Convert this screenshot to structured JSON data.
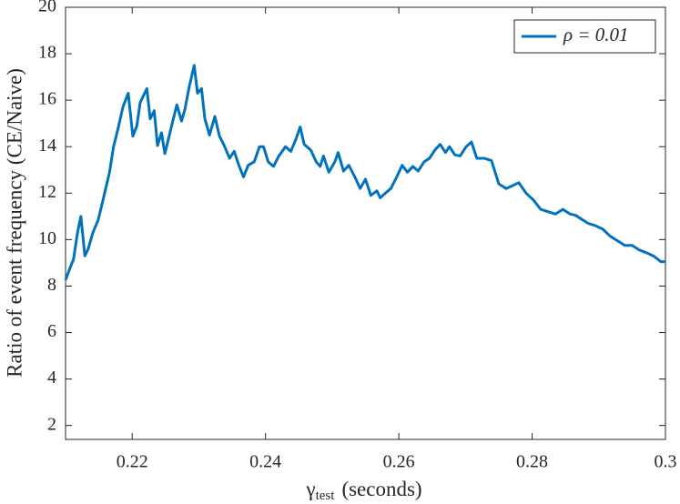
{
  "chart_data": {
    "type": "line",
    "ylabel": "Ratio of event frequency (CE/Naive)",
    "xlabel": {
      "symbol": "γ",
      "subscript": "test",
      "unit": "(seconds)"
    },
    "xlim": [
      0.21,
      0.3
    ],
    "ylim": [
      1.4,
      20
    ],
    "xticks": [
      0.22,
      0.24,
      0.26,
      0.28,
      0.3
    ],
    "yticks": [
      2,
      4,
      6,
      8,
      10,
      12,
      14,
      16,
      18,
      20
    ],
    "grid": false,
    "legend": "upper right",
    "x": [
      0.21,
      0.2107,
      0.2112,
      0.2118,
      0.2123,
      0.2129,
      0.2134,
      0.2141,
      0.2149,
      0.2157,
      0.2166,
      0.2172,
      0.2179,
      0.2186,
      0.2194,
      0.2201,
      0.2207,
      0.2212,
      0.2222,
      0.2227,
      0.2233,
      0.2238,
      0.2244,
      0.2249,
      0.2255,
      0.226,
      0.2267,
      0.2274,
      0.2279,
      0.2285,
      0.2293,
      0.2298,
      0.2304,
      0.2309,
      0.2316,
      0.2324,
      0.2331,
      0.2338,
      0.2346,
      0.2353,
      0.236,
      0.2367,
      0.2374,
      0.2383,
      0.2391,
      0.2397,
      0.2404,
      0.2412,
      0.242,
      0.243,
      0.2438,
      0.2446,
      0.2452,
      0.2458,
      0.2468,
      0.2476,
      0.2482,
      0.2487,
      0.2495,
      0.2504,
      0.2509,
      0.2517,
      0.2525,
      0.2534,
      0.2542,
      0.255,
      0.2558,
      0.2567,
      0.2572,
      0.258,
      0.2588,
      0.2597,
      0.2605,
      0.2613,
      0.2621,
      0.2629,
      0.2638,
      0.2646,
      0.2654,
      0.2662,
      0.267,
      0.2676,
      0.2684,
      0.2692,
      0.2701,
      0.2709,
      0.2717,
      0.2728,
      0.2739,
      0.275,
      0.2761,
      0.2769,
      0.278,
      0.2791,
      0.2802,
      0.2813,
      0.2824,
      0.2835,
      0.2846,
      0.2857,
      0.2865,
      0.2873,
      0.2884,
      0.2895,
      0.2906,
      0.2917,
      0.2928,
      0.2939,
      0.295,
      0.2961,
      0.2972,
      0.2983,
      0.2993,
      0.3
    ],
    "series": [
      {
        "name": "ρ = 0.01",
        "color": "#0072bd",
        "values": [
          8.26,
          8.8,
          9.16,
          10.3,
          11.0,
          9.3,
          9.6,
          10.3,
          10.85,
          11.8,
          12.9,
          14.0,
          14.8,
          15.7,
          16.3,
          14.45,
          14.9,
          15.9,
          16.5,
          15.2,
          15.55,
          14.05,
          14.6,
          13.7,
          14.4,
          15.0,
          15.8,
          15.1,
          15.6,
          16.5,
          17.5,
          16.3,
          16.5,
          15.2,
          14.5,
          15.3,
          14.45,
          14.05,
          13.5,
          13.8,
          13.2,
          12.7,
          13.2,
          13.35,
          14.0,
          14.0,
          13.35,
          13.15,
          13.6,
          14.0,
          13.8,
          14.35,
          14.85,
          14.1,
          13.85,
          13.35,
          13.15,
          13.6,
          12.9,
          13.35,
          13.75,
          12.95,
          13.2,
          12.7,
          12.2,
          12.6,
          11.9,
          12.1,
          11.8,
          12.0,
          12.2,
          12.7,
          13.2,
          12.9,
          13.15,
          12.95,
          13.35,
          13.5,
          13.85,
          14.1,
          13.75,
          14.0,
          13.65,
          13.6,
          14.0,
          14.2,
          13.5,
          13.5,
          13.4,
          12.4,
          12.2,
          12.3,
          12.45,
          12.0,
          11.7,
          11.3,
          11.2,
          11.1,
          11.3,
          11.1,
          11.05,
          10.9,
          10.7,
          10.6,
          10.45,
          10.15,
          9.95,
          9.75,
          9.75,
          9.55,
          9.43,
          9.28,
          9.05,
          9.05
        ]
      }
    ]
  }
}
